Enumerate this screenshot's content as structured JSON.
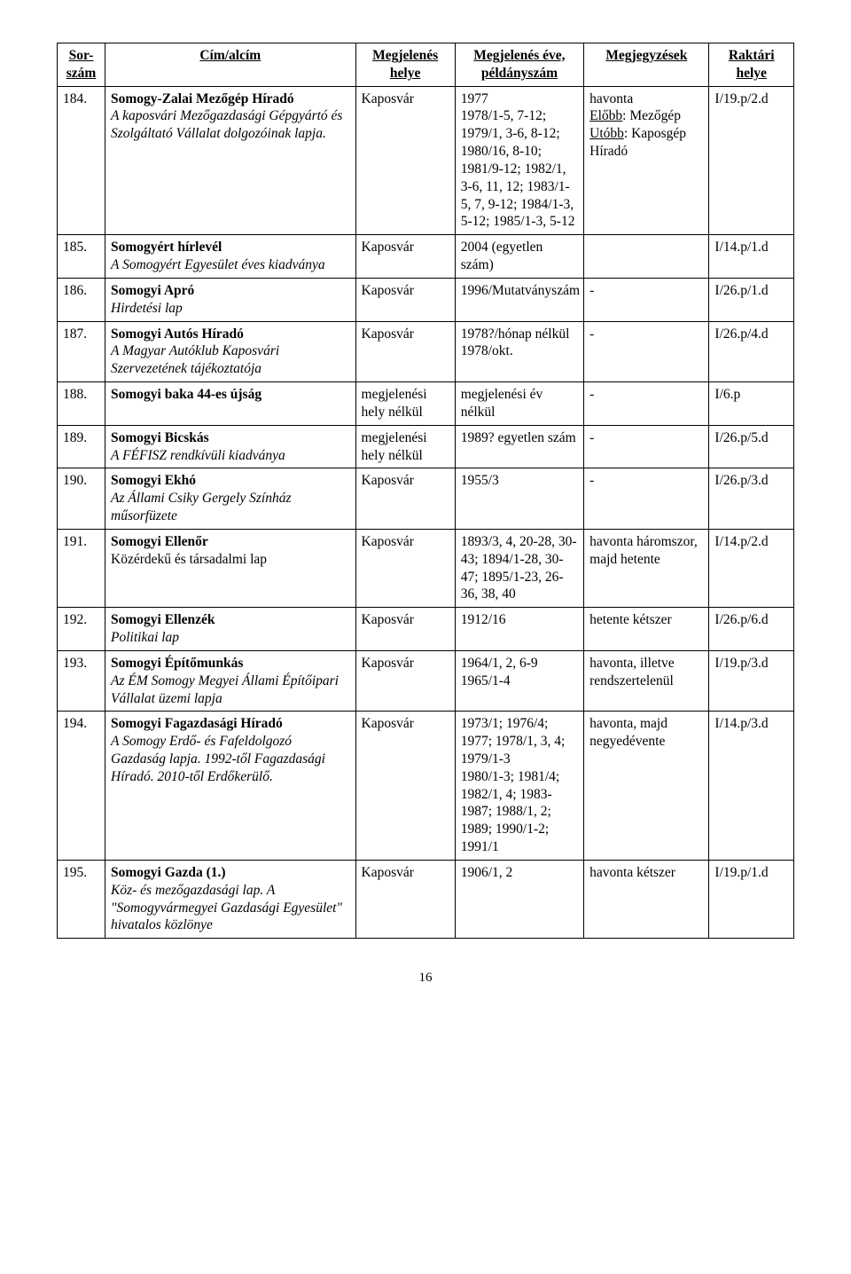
{
  "header": {
    "col1_line1": "Sor-",
    "col1_line2": "szám",
    "col2": "Cím/alcím",
    "col3_line1": "Megjelenés",
    "col3_line2": "helye",
    "col4_line1": "Megjelenés éve,",
    "col4_line2": "példányszám",
    "col5": "Megjegyzések",
    "col6_line1": "Raktári",
    "col6_line2": "helye"
  },
  "rows": [
    {
      "num": "184.",
      "title_main": "Somogy-Zalai Mezőgép Híradó",
      "title_sub": "A kaposvári Mezőgazdasági Gépgyártó és Szolgáltató Vállalat dolgozóinak lapja.",
      "place": "Kaposvár",
      "year": "1977\n1978/1-5, 7-12; 1979/1, 3-6, 8-12; 1980/16, 8-10; 1981/9-12; 1982/1, 3-6, 11, 12; 1983/1-5, 7, 9-12; 1984/1-3, 5-12; 1985/1-3, 5-12",
      "notes_pre": "havonta",
      "notes_u1_label": "Előbb",
      "notes_u1_rest": ": Mezőgép",
      "notes_u2_label": "Utóbb",
      "notes_u2_rest": ": Kaposgép Híradó",
      "shelf": "I/19.p/2.d"
    },
    {
      "num": "185.",
      "title_main": "Somogyért hírlevél",
      "title_sub": "A Somogyért Egyesület éves kiadványa",
      "place": "Kaposvár",
      "year": "2004 (egyetlen szám)",
      "notes": "",
      "shelf": "I/14.p/1.d"
    },
    {
      "num": "186.",
      "title_main": "Somogyi Apró",
      "title_sub": "Hirdetési lap",
      "place": "Kaposvár",
      "year": "1996/Mutatványszám",
      "notes": "-",
      "shelf": "I/26.p/1.d"
    },
    {
      "num": "187.",
      "title_main": "Somogyi Autós Híradó",
      "title_sub": "A Magyar Autóklub Kaposvári Szervezetének tájékoztatója",
      "place": "Kaposvár",
      "year": "1978?/hónap nélkül\n1978/okt.",
      "notes": "-",
      "shelf": "I/26.p/4.d"
    },
    {
      "num": "188.",
      "title_main": "Somogyi baka 44-es újság",
      "title_sub": "",
      "place": "megjelenési hely nélkül",
      "year": "megjelenési év nélkül",
      "notes": "-",
      "shelf": "I/6.p"
    },
    {
      "num": "189.",
      "title_main": "Somogyi Bicskás",
      "title_sub": "A FÉFISZ rendkívüli kiadványa",
      "place": "megjelenési hely nélkül",
      "year": "1989? egyetlen szám",
      "notes": "-",
      "shelf": "I/26.p/5.d"
    },
    {
      "num": "190.",
      "title_main": "Somogyi Ekhó",
      "title_sub": "Az Állami Csiky Gergely Színház műsorfüzete",
      "place": "Kaposvár",
      "year": "1955/3",
      "notes": "-",
      "shelf": "I/26.p/3.d"
    },
    {
      "num": "191.",
      "title_main": "Somogyi Ellenőr",
      "title_sub_plain": "Közérdekű és társadalmi lap",
      "place": "Kaposvár",
      "year": "1893/3, 4, 20-28, 30-43; 1894/1-28, 30-47; 1895/1-23, 26-36, 38, 40",
      "notes": "havonta háromszor, majd hetente",
      "shelf": "I/14.p/2.d"
    },
    {
      "num": "192.",
      "title_main": "Somogyi Ellenzék",
      "title_sub": "Politikai lap",
      "place": "Kaposvár",
      "year": "1912/16",
      "notes": "hetente kétszer",
      "shelf": "I/26.p/6.d"
    },
    {
      "num": "193.",
      "title_main": "Somogyi Építőmunkás",
      "title_sub": "Az ÉM Somogy Megyei Állami Építőipari Vállalat üzemi lapja",
      "place": "Kaposvár",
      "year": "1964/1, 2, 6-9\n1965/1-4",
      "notes": "havonta, illetve rendszertelenül",
      "shelf": "I/19.p/3.d"
    },
    {
      "num": "194.",
      "title_main": "Somogyi Fagazdasági Híradó",
      "title_sub": "A Somogy Erdő- és Fafeldolgozó Gazdaság lapja. 1992-től Fagazdasági Híradó. 2010-től Erdőkerülő.",
      "place": "Kaposvár",
      "year": "1973/1; 1976/4; 1977; 1978/1, 3, 4; 1979/1-3\n1980/1-3; 1981/4; 1982/1, 4; 1983-1987; 1988/1, 2; 1989; 1990/1-2; 1991/1",
      "notes": "havonta, majd negyedévente",
      "shelf": "I/14.p/3.d"
    },
    {
      "num": "195.",
      "title_main": "Somogyi Gazda (1.)",
      "title_sub": "Köz- és mezőgazdasági lap. A \"Somogyvármegyei Gazdasági Egyesület\" hivatalos közlönye",
      "place": "Kaposvár",
      "year": "1906/1, 2",
      "notes": "havonta kétszer",
      "shelf": "I/19.p/1.d"
    }
  ],
  "footer": {
    "page_number": "16"
  }
}
